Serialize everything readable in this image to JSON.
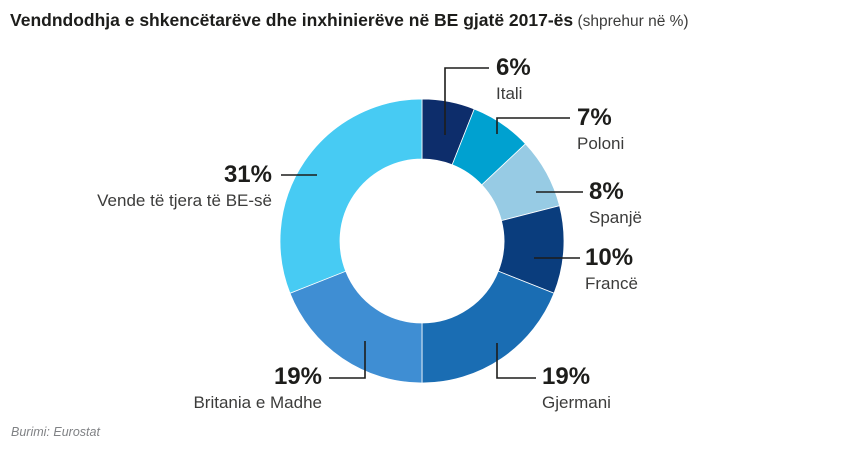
{
  "title": {
    "main": "Vendndodhja e shkencëtarëve dhe inxhinierëve në BE gjatë 2017-ës",
    "suffix": " (shprehur në %)"
  },
  "source": "Burimi: Eurostat",
  "chart_data": {
    "type": "pie",
    "subtype": "donut",
    "title": "Vendndodhja e shkencëtarëve dhe inxhinierëve në BE gjatë 2017-ës (shprehur në %)",
    "unit": "%",
    "total": 100,
    "start_angle_deg": -90,
    "direction": "clockwise",
    "legend": "none",
    "segments": [
      {
        "label": "Itali",
        "value": 6,
        "pct_label": "6%",
        "color": "#0d2d6b"
      },
      {
        "label": "Poloni",
        "value": 7,
        "pct_label": "7%",
        "color": "#00a1d0"
      },
      {
        "label": "Spanjë",
        "value": 8,
        "pct_label": "8%",
        "color": "#97cbe4"
      },
      {
        "label": "Francë",
        "value": 10,
        "pct_label": "10%",
        "color": "#0a3d7d"
      },
      {
        "label": "Gjermani",
        "value": 19,
        "pct_label": "19%",
        "color": "#1a6db3"
      },
      {
        "label": "Britania e Madhe",
        "value": 19,
        "pct_label": "19%",
        "color": "#3f8ed3"
      },
      {
        "label": "Vende të tjera të BE-së",
        "value": 31,
        "pct_label": "31%",
        "color": "#47cbf3"
      }
    ],
    "leader_line_color": "#1d1d1b",
    "background_color": "#ffffff"
  }
}
